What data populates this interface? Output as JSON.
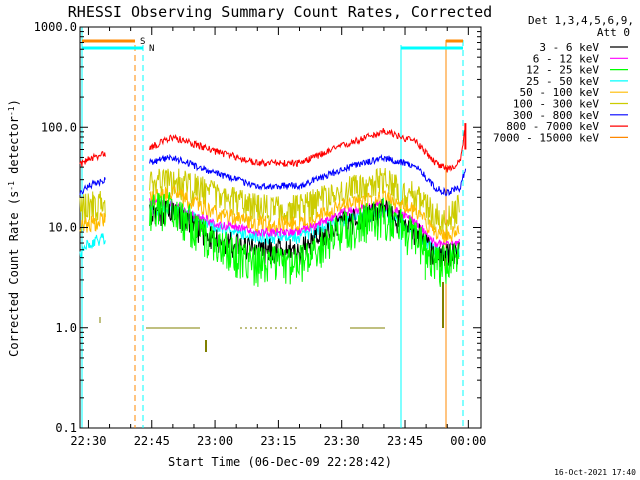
{
  "chart_data": {
    "type": "line",
    "title": "RHESSI Observing Summary Count Rates, Corrected",
    "xlabel": "Start Time (06-Dec-09 22:28:42)",
    "ylabel_main": "Corrected Count Rate (s",
    "ylabel_sup1": "-1",
    "ylabel_mid": " detector",
    "ylabel_sup2": "-1",
    "ylabel_end": ")",
    "yscale": "log",
    "ylim": [
      0.1,
      1000
    ],
    "xlim_minutes": [
      -2,
      93
    ],
    "x_ticks": [
      {
        "m": 0,
        "label": "22:30"
      },
      {
        "m": 15,
        "label": "22:45"
      },
      {
        "m": 30,
        "label": "23:00"
      },
      {
        "m": 45,
        "label": "23:15"
      },
      {
        "m": 60,
        "label": "23:30"
      },
      {
        "m": 75,
        "label": "23:45"
      },
      {
        "m": 90,
        "label": "00:00"
      }
    ],
    "y_ticks": [
      {
        "v": 0.1,
        "label": "0.1"
      },
      {
        "v": 1,
        "label": "1.0"
      },
      {
        "v": 10,
        "label": "10.0"
      },
      {
        "v": 100,
        "label": "100.0"
      },
      {
        "v": 1000,
        "label": "1000.0"
      }
    ],
    "legend_header": [
      "Det 1,3,4,5,6,9,",
      "Att 0"
    ],
    "legend_placement": "right",
    "series": [
      {
        "name": "3 - 6 keV",
        "color": "#000000",
        "x": [
          14.5,
          20,
          30,
          40,
          50,
          60,
          70,
          78,
          82,
          88
        ],
        "y": [
          15,
          14,
          8,
          6,
          6,
          11,
          15,
          9,
          5,
          6
        ],
        "noise": 0.3
      },
      {
        "name": "6 - 12 keV",
        "color": "#ff00ff",
        "x": [
          14.5,
          20,
          30,
          40,
          50,
          60,
          70,
          78,
          82,
          88
        ],
        "y": [
          18,
          17,
          11,
          9,
          9,
          14,
          17,
          11,
          7,
          7
        ],
        "noise": 0.1
      },
      {
        "name": "12 - 25 keV",
        "color": "#00ff00",
        "x": [
          14.5,
          20,
          30,
          40,
          50,
          60,
          70,
          78,
          82,
          88
        ],
        "y": [
          16,
          16,
          7,
          4.5,
          4.5,
          10,
          14,
          8,
          4.5,
          5
        ],
        "noise": 0.45
      },
      {
        "name": "25 - 50 keV",
        "color": "#00ffff",
        "x": [
          -2,
          0,
          4,
          14.5,
          20,
          30,
          40,
          50,
          60,
          70,
          78,
          82,
          85,
          88
        ],
        "y": [
          5.5,
          7,
          8,
          15,
          16,
          10,
          8,
          8,
          12,
          14,
          9,
          6,
          5.5,
          6
        ],
        "noise": 0.15
      },
      {
        "name": "50 - 100 keV",
        "color": "#ffbb00",
        "x": [
          -2,
          0,
          4,
          14.5,
          20,
          30,
          40,
          50,
          60,
          70,
          78,
          82,
          85,
          88
        ],
        "y": [
          10,
          11,
          12,
          20,
          22,
          14,
          11,
          11,
          16,
          20,
          14,
          9,
          8,
          10
        ],
        "noise": 0.2
      },
      {
        "name": "100 - 300 keV",
        "color": "#cccc00",
        "x": [
          -2,
          0,
          4,
          14.5,
          20,
          30,
          40,
          50,
          60,
          70,
          78,
          82,
          85,
          88
        ],
        "y": [
          15,
          17,
          18,
          28,
          30,
          22,
          16,
          16,
          23,
          30,
          20,
          14,
          12,
          17
        ],
        "noise": 0.35
      },
      {
        "name": "300 - 800 keV",
        "color": "#0000ff",
        "x": [
          -2,
          0,
          4,
          14.5,
          20,
          30,
          40,
          50,
          60,
          70,
          78,
          82,
          85,
          88,
          89.5
        ],
        "y": [
          22,
          26,
          30,
          45,
          50,
          35,
          26,
          26,
          38,
          50,
          40,
          25,
          22,
          25,
          40
        ],
        "noise": 0.08
      },
      {
        "name": "800 - 7000 keV",
        "color": "#ff0000",
        "x": [
          -2,
          0,
          4,
          14.5,
          20,
          30,
          40,
          50,
          60,
          70,
          78,
          82,
          85,
          88,
          89.5
        ],
        "y": [
          42,
          48,
          55,
          62,
          80,
          58,
          44,
          44,
          65,
          92,
          70,
          45,
          38,
          45,
          110
        ],
        "noise": 0.08
      },
      {
        "name": "7000 - 15000 keV",
        "color": "#ff8800",
        "x": [],
        "y": [],
        "noise": 0
      }
    ],
    "annotations": [
      {
        "label": "S",
        "color": "#ff8800"
      },
      {
        "label": "N",
        "color": "#00ffff"
      }
    ],
    "timestamp": "16-Oct-2021 17:40"
  }
}
